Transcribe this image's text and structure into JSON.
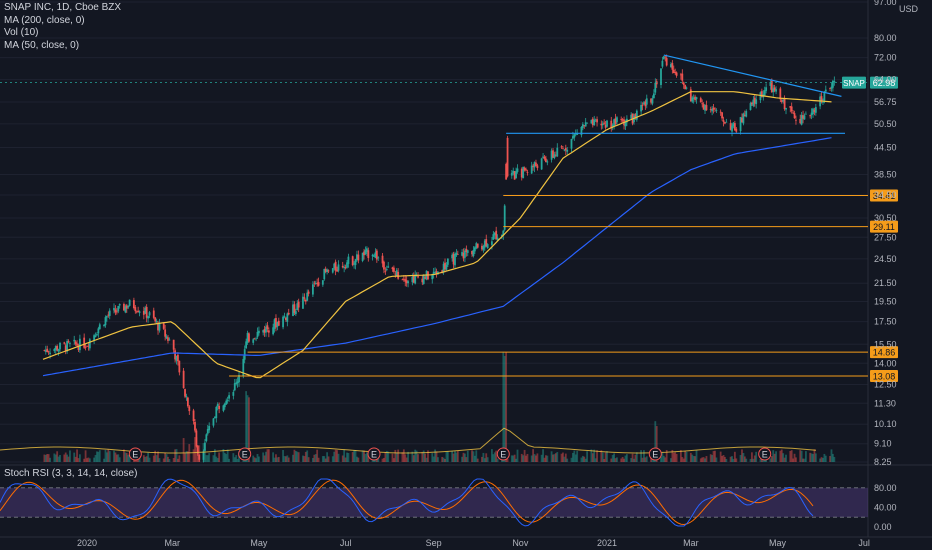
{
  "legend": {
    "title": "SNAP INC, 1D, Cboe BZX",
    "ma200": "MA (200, close, 0)",
    "vol": "Vol (10)",
    "ma50": "MA (50, close, 0)"
  },
  "rsi_legend": "Stoch RSI (3, 3, 14, 14, close)",
  "colors": {
    "background": "#131722",
    "up": "#26a69a",
    "down": "#ef5350",
    "ma200": "#2962ff",
    "ma50": "#f0c341",
    "levels": "#f59c1a",
    "support": "#2196f3",
    "rsi_k": "#2962ff",
    "rsi_d": "#ff6d00",
    "rsi_band": "#7e57c2"
  },
  "price_axis": {
    "unit": "USD",
    "ticks": [
      "97.00",
      "80.00",
      "72.00",
      "64.00",
      "56.75",
      "50.50",
      "44.50",
      "38.50",
      "34.50",
      "30.50",
      "27.50",
      "24.50",
      "21.50",
      "19.50",
      "17.50",
      "15.50",
      "14.00",
      "12.50",
      "11.30",
      "10.10",
      "9.10",
      "8.25"
    ],
    "current_badge": "62.98",
    "current_badge_left": "SNAP"
  },
  "rsi_axis": {
    "ticks": [
      "80.00",
      "40.00",
      "0.00"
    ]
  },
  "time_axis": {
    "labels": [
      "2020",
      "Mar",
      "May",
      "Jul",
      "Sep",
      "Nov",
      "2021",
      "Mar",
      "May",
      "Jul"
    ]
  },
  "earnings_marker": "E",
  "level_labels": [
    "34.41",
    "29.11",
    "14.86",
    "13.08"
  ],
  "chart_data": {
    "type": "candlestick",
    "title": "SNAP INC, 1D, Cboe BZX",
    "y_scale": "log",
    "ylim": [
      8.25,
      97
    ],
    "x_range": [
      "2019-12",
      "2021-07"
    ],
    "horizontal_levels": [
      34.41,
      29.11,
      14.86,
      13.08
    ],
    "support_level": 48.0,
    "trendline": {
      "from": [
        "2021-02-10",
        73.0
      ],
      "to": [
        "2021-06-15",
        58.5
      ]
    },
    "earnings_dates": [
      "2020-02-04",
      "2020-04-21",
      "2020-07-21",
      "2020-10-20",
      "2021-02-04",
      "2021-04-22"
    ],
    "last_close": 62.98,
    "price_path": [
      {
        "date": "2019-12-01",
        "close": 15.0
      },
      {
        "date": "2019-12-15",
        "close": 15.3
      },
      {
        "date": "2020-01-01",
        "close": 15.6
      },
      {
        "date": "2020-01-15",
        "close": 18.0
      },
      {
        "date": "2020-02-01",
        "close": 19.3
      },
      {
        "date": "2020-02-15",
        "close": 18.0
      },
      {
        "date": "2020-03-01",
        "close": 15.5
      },
      {
        "date": "2020-03-15",
        "close": 10.5
      },
      {
        "date": "2020-03-20",
        "close": 8.4
      },
      {
        "date": "2020-04-01",
        "close": 11.0
      },
      {
        "date": "2020-04-15",
        "close": 12.5
      },
      {
        "date": "2020-04-23",
        "close": 16.0
      },
      {
        "date": "2020-05-15",
        "close": 17.5
      },
      {
        "date": "2020-06-01",
        "close": 19.5
      },
      {
        "date": "2020-06-15",
        "close": 22.5
      },
      {
        "date": "2020-07-01",
        "close": 24.0
      },
      {
        "date": "2020-07-20",
        "close": 25.5
      },
      {
        "date": "2020-08-01",
        "close": 23.0
      },
      {
        "date": "2020-08-15",
        "close": 22.0
      },
      {
        "date": "2020-09-01",
        "close": 22.5
      },
      {
        "date": "2020-09-15",
        "close": 24.5
      },
      {
        "date": "2020-10-01",
        "close": 26.0
      },
      {
        "date": "2020-10-20",
        "close": 28.5
      },
      {
        "date": "2020-10-22",
        "close": 37.5
      },
      {
        "date": "2020-11-15",
        "close": 41.0
      },
      {
        "date": "2020-12-01",
        "close": 44.0
      },
      {
        "date": "2020-12-15",
        "close": 50.0
      },
      {
        "date": "2021-01-01",
        "close": 50.5
      },
      {
        "date": "2021-01-20",
        "close": 52.0
      },
      {
        "date": "2021-02-01",
        "close": 58.0
      },
      {
        "date": "2021-02-10",
        "close": 72.0
      },
      {
        "date": "2021-02-20",
        "close": 66.0
      },
      {
        "date": "2021-03-01",
        "close": 58.0
      },
      {
        "date": "2021-03-15",
        "close": 55.0
      },
      {
        "date": "2021-04-01",
        "close": 49.0
      },
      {
        "date": "2021-04-15",
        "close": 57.0
      },
      {
        "date": "2021-04-25",
        "close": 62.0
      },
      {
        "date": "2021-05-10",
        "close": 54.0
      },
      {
        "date": "2021-05-20",
        "close": 51.5
      },
      {
        "date": "2021-06-01",
        "close": 58.0
      },
      {
        "date": "2021-06-10",
        "close": 62.98
      }
    ],
    "ma50_path": [
      {
        "date": "2019-12-01",
        "close": 14.3
      },
      {
        "date": "2020-02-01",
        "close": 17.0
      },
      {
        "date": "2020-03-01",
        "close": 17.5
      },
      {
        "date": "2020-04-01",
        "close": 14.0
      },
      {
        "date": "2020-05-01",
        "close": 12.9
      },
      {
        "date": "2020-06-01",
        "close": 15.0
      },
      {
        "date": "2020-07-01",
        "close": 19.5
      },
      {
        "date": "2020-08-01",
        "close": 22.3
      },
      {
        "date": "2020-09-01",
        "close": 22.5
      },
      {
        "date": "2020-10-01",
        "close": 24.0
      },
      {
        "date": "2020-11-01",
        "close": 30.5
      },
      {
        "date": "2020-12-01",
        "close": 42.0
      },
      {
        "date": "2021-01-01",
        "close": 49.0
      },
      {
        "date": "2021-02-01",
        "close": 54.0
      },
      {
        "date": "2021-03-01",
        "close": 60.0
      },
      {
        "date": "2021-04-01",
        "close": 60.0
      },
      {
        "date": "2021-05-01",
        "close": 58.0
      },
      {
        "date": "2021-06-10",
        "close": 56.75
      }
    ],
    "ma200_path": [
      {
        "date": "2019-12-01",
        "close": 13.1
      },
      {
        "date": "2020-03-01",
        "close": 14.8
      },
      {
        "date": "2020-05-01",
        "close": 14.6
      },
      {
        "date": "2020-07-01",
        "close": 15.6
      },
      {
        "date": "2020-09-01",
        "close": 17.3
      },
      {
        "date": "2020-10-20",
        "close": 19.0
      },
      {
        "date": "2020-12-01",
        "close": 24.0
      },
      {
        "date": "2021-01-01",
        "close": 29.0
      },
      {
        "date": "2021-02-01",
        "close": 35.0
      },
      {
        "date": "2021-03-01",
        "close": 39.5
      },
      {
        "date": "2021-04-01",
        "close": 43.0
      },
      {
        "date": "2021-06-10",
        "close": 47.0
      }
    ],
    "series": [
      {
        "name": "MA (200, close, 0)"
      },
      {
        "name": "MA (50, close, 0)"
      },
      {
        "name": "Vol (10)"
      },
      {
        "name": "Stoch RSI (3, 3, 14, 14, close)"
      }
    ],
    "rsi_ylim": [
      0,
      100
    ]
  }
}
